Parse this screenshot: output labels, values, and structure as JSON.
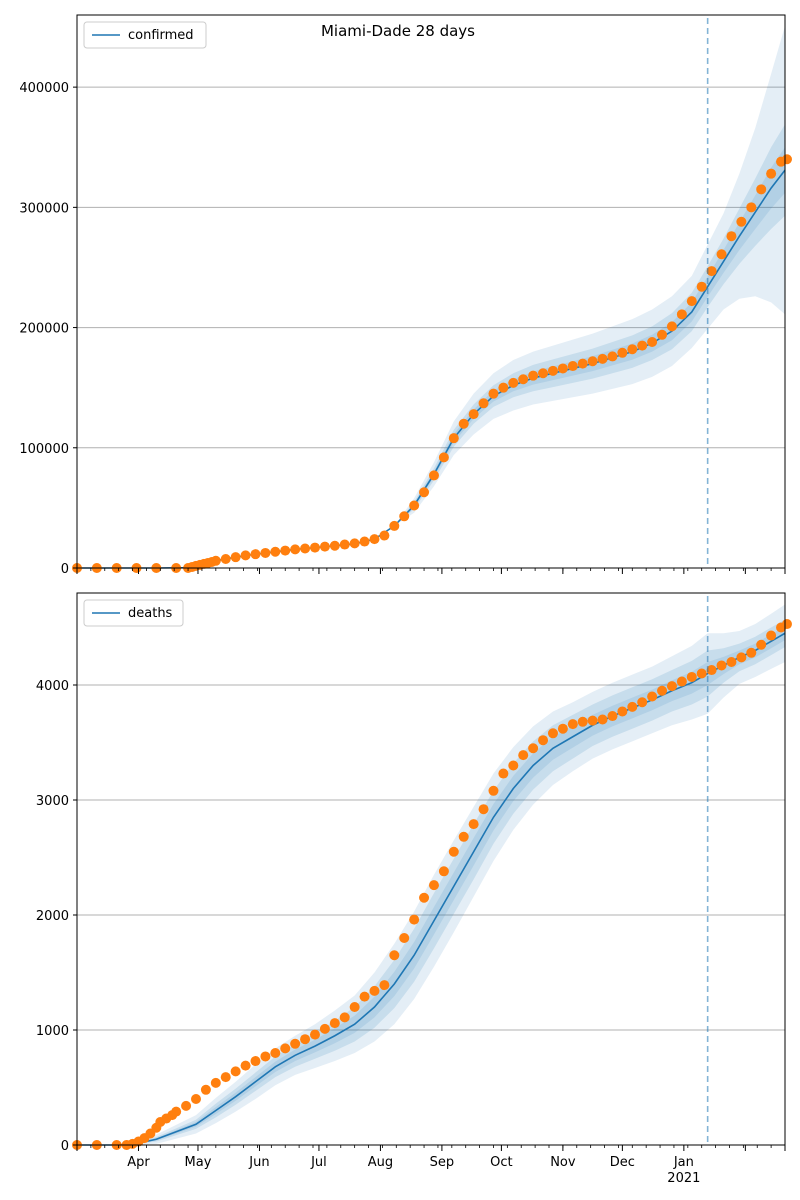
{
  "chart_data": [
    {
      "type": "line",
      "panel": "top",
      "title": "Miami-Dade 28 days",
      "legend": {
        "label": "confirmed",
        "placement": "top-left"
      },
      "ylim": [
        0,
        460000
      ],
      "yticks": [
        0,
        100000,
        200000,
        300000,
        400000
      ],
      "ytick_labels": [
        "0",
        "100000",
        "200000",
        "300000",
        "400000"
      ],
      "forecast_start_day": 318,
      "grid": true,
      "x_days": [
        0,
        20,
        40,
        56,
        60,
        64,
        70,
        80,
        90,
        100,
        110,
        120,
        130,
        140,
        150,
        160,
        170,
        180,
        190,
        200,
        210,
        220,
        230,
        240,
        250,
        260,
        270,
        280,
        290,
        300,
        310,
        318,
        326,
        334,
        342,
        350,
        357
      ],
      "fit_values": [
        0,
        0,
        0,
        300,
        1800,
        3500,
        6000,
        9000,
        11500,
        13500,
        15500,
        17000,
        18500,
        20000,
        24000,
        35000,
        52000,
        78000,
        108000,
        128000,
        143000,
        152000,
        158000,
        162000,
        166000,
        170000,
        175000,
        180000,
        187000,
        197000,
        213000,
        234000,
        255000,
        276000,
        296000,
        316000,
        331000
      ],
      "band_inner": [
        0,
        0,
        0,
        0,
        0,
        0,
        0,
        0,
        0,
        0,
        0,
        0,
        0,
        0,
        0,
        0,
        3000,
        5000,
        7000,
        8000,
        9000,
        10000,
        11000,
        11500,
        12000,
        12500,
        13000,
        13500,
        14000,
        15000,
        16000,
        17000,
        19000,
        23000,
        28000,
        34000,
        38000
      ],
      "band_outer": [
        0,
        0,
        0,
        0,
        0,
        0,
        0,
        0,
        0,
        0,
        0,
        0,
        0,
        0,
        0,
        0,
        6000,
        10000,
        14000,
        17000,
        19000,
        21000,
        22000,
        23000,
        24000,
        25000,
        26000,
        27000,
        28000,
        29000,
        30000,
        35000,
        40000,
        52000,
        70000,
        95000,
        120000
      ],
      "observed_x": [
        0,
        10,
        20,
        30,
        40,
        50,
        56,
        58,
        60,
        62,
        64,
        66,
        68,
        70,
        75,
        80,
        85,
        90,
        95,
        100,
        105,
        110,
        115,
        120,
        125,
        130,
        135,
        140,
        145,
        150,
        155,
        160,
        165,
        170,
        175,
        180,
        185,
        190,
        195,
        200,
        205,
        210,
        215,
        220,
        225,
        230,
        235,
        240,
        245,
        250,
        255,
        260,
        265,
        270,
        275,
        280,
        285,
        290,
        295,
        300,
        305,
        310,
        315,
        320,
        325,
        330,
        335,
        340,
        345,
        350,
        355,
        358
      ],
      "observed_y": [
        0,
        0,
        0,
        0,
        0,
        0,
        0,
        800,
        1800,
        2600,
        3400,
        4200,
        5000,
        6000,
        7500,
        9000,
        10500,
        11500,
        12500,
        13500,
        14500,
        15500,
        16200,
        17000,
        17800,
        18500,
        19500,
        20500,
        22000,
        24000,
        27000,
        35000,
        43000,
        52000,
        63000,
        77000,
        92000,
        108000,
        120000,
        128000,
        137000,
        145000,
        150000,
        154000,
        157000,
        160000,
        162000,
        164000,
        166000,
        168000,
        170000,
        172000,
        174000,
        176000,
        179000,
        182000,
        185000,
        188000,
        194000,
        201000,
        211000,
        222000,
        234000,
        247000,
        261000,
        276000,
        288000,
        300000,
        315000,
        328000,
        338000,
        340000
      ]
    },
    {
      "type": "line",
      "panel": "bottom",
      "title": "",
      "legend": {
        "label": "deaths",
        "placement": "top-left"
      },
      "ylim": [
        0,
        4800
      ],
      "yticks": [
        0,
        1000,
        2000,
        3000,
        4000
      ],
      "ytick_labels": [
        "0",
        "1000",
        "2000",
        "3000",
        "4000"
      ],
      "forecast_start_day": 318,
      "grid": true,
      "x_categories_days": [
        0,
        31,
        61,
        92,
        122,
        153,
        184,
        214,
        245,
        275,
        306,
        337
      ],
      "x_tick_labels": [
        "",
        "Apr",
        "May",
        "Jun",
        "Jul",
        "Aug",
        "Sep",
        "Oct",
        "Nov",
        "Dec",
        "Jan\n2021",
        ""
      ],
      "x_major_days": [
        0,
        31,
        61,
        92,
        122,
        153,
        184,
        214,
        245,
        275,
        306,
        337,
        357
      ],
      "x_days": [
        0,
        20,
        28,
        40,
        60,
        70,
        80,
        90,
        100,
        110,
        120,
        130,
        140,
        150,
        160,
        170,
        180,
        190,
        200,
        210,
        220,
        230,
        240,
        250,
        260,
        270,
        280,
        290,
        300,
        310,
        318,
        326,
        334,
        342,
        350,
        357
      ],
      "fit_values": [
        0,
        0,
        5,
        50,
        180,
        300,
        420,
        550,
        680,
        780,
        860,
        950,
        1050,
        1200,
        1400,
        1650,
        1950,
        2250,
        2550,
        2850,
        3100,
        3300,
        3450,
        3550,
        3650,
        3730,
        3800,
        3870,
        3950,
        4020,
        4100,
        4170,
        4240,
        4300,
        4380,
        4450
      ],
      "band_inner": [
        0,
        0,
        0,
        20,
        40,
        60,
        70,
        80,
        90,
        100,
        110,
        130,
        150,
        180,
        210,
        230,
        240,
        240,
        240,
        230,
        220,
        210,
        200,
        190,
        180,
        180,
        180,
        180,
        180,
        190,
        200,
        150,
        120,
        120,
        120,
        120
      ],
      "band_outer": [
        0,
        0,
        0,
        40,
        80,
        110,
        130,
        150,
        160,
        170,
        190,
        220,
        250,
        300,
        350,
        380,
        400,
        400,
        390,
        380,
        360,
        340,
        320,
        300,
        290,
        290,
        290,
        290,
        300,
        320,
        350,
        280,
        230,
        230,
        240,
        250
      ],
      "observed_x": [
        0,
        10,
        20,
        25,
        28,
        31,
        34,
        37,
        40,
        42,
        45,
        48,
        50,
        55,
        60,
        65,
        70,
        75,
        80,
        85,
        90,
        95,
        100,
        105,
        110,
        115,
        120,
        125,
        130,
        135,
        140,
        145,
        150,
        155,
        160,
        165,
        170,
        175,
        180,
        185,
        190,
        195,
        200,
        205,
        210,
        215,
        220,
        225,
        230,
        235,
        240,
        245,
        250,
        255,
        260,
        265,
        270,
        275,
        280,
        285,
        290,
        295,
        300,
        305,
        310,
        315,
        320,
        325,
        330,
        335,
        340,
        345,
        350,
        355,
        358
      ],
      "observed_y": [
        0,
        0,
        0,
        0,
        10,
        30,
        60,
        100,
        150,
        200,
        230,
        260,
        290,
        340,
        400,
        480,
        540,
        590,
        640,
        690,
        730,
        770,
        800,
        840,
        880,
        920,
        960,
        1010,
        1060,
        1110,
        1200,
        1290,
        1340,
        1390,
        1650,
        1800,
        1960,
        2150,
        2260,
        2380,
        2550,
        2680,
        2790,
        2920,
        3080,
        3230,
        3300,
        3390,
        3450,
        3520,
        3580,
        3620,
        3660,
        3680,
        3690,
        3700,
        3730,
        3770,
        3810,
        3850,
        3900,
        3950,
        3990,
        4030,
        4070,
        4100,
        4130,
        4170,
        4200,
        4240,
        4280,
        4350,
        4430,
        4500,
        4530
      ]
    }
  ]
}
